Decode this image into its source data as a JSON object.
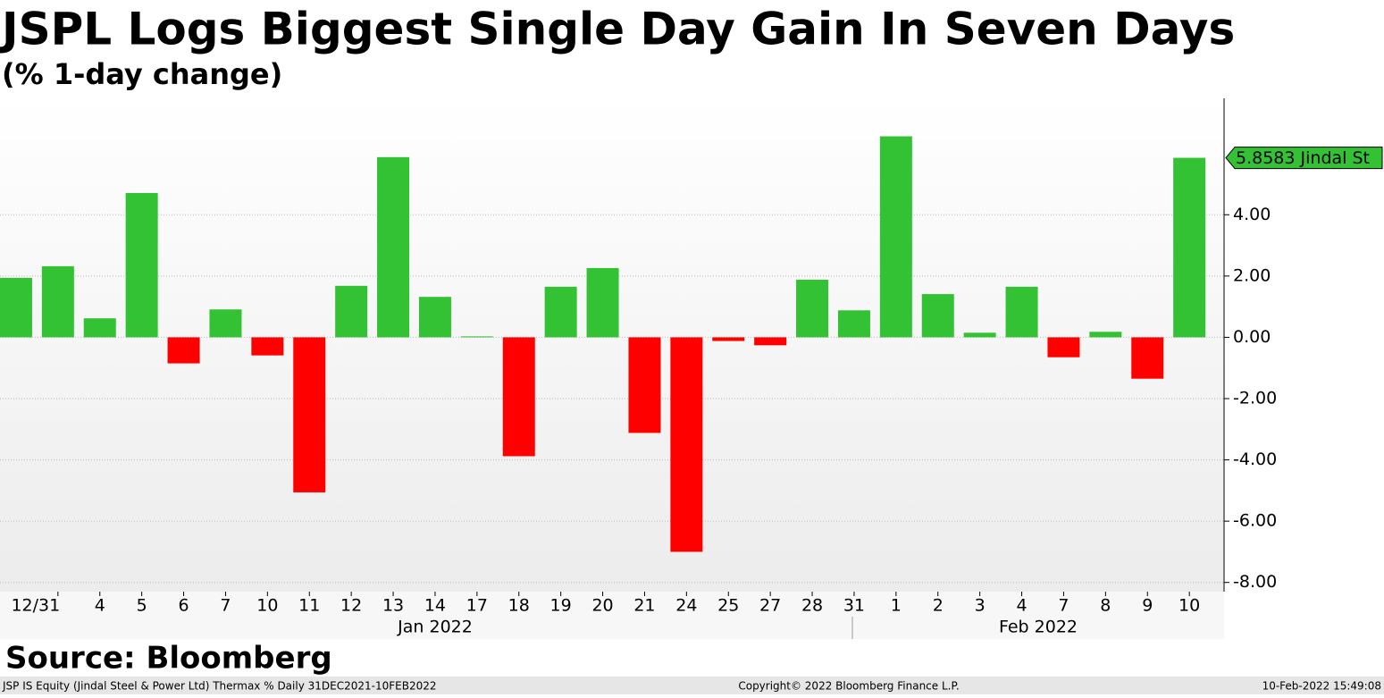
{
  "chart_data": {
    "type": "bar",
    "title": "JSPL Logs Biggest Single Day Gain In Seven Days",
    "subtitle": "(% 1-day change)",
    "categories": [
      null,
      "12/31",
      "4",
      "5",
      "6",
      "7",
      "10",
      "11",
      "12",
      "13",
      "14",
      "17",
      "18",
      "19",
      "20",
      "21",
      "24",
      "25",
      "27",
      "28",
      "31",
      "1",
      "2",
      "3",
      "4",
      "7",
      "8",
      "9",
      "10"
    ],
    "values": [
      1.94,
      2.32,
      0.62,
      4.71,
      -0.85,
      0.91,
      -0.59,
      -5.06,
      1.68,
      5.88,
      1.32,
      0.03,
      -3.88,
      1.65,
      2.26,
      -3.12,
      -7.0,
      -0.12,
      -0.26,
      1.88,
      0.88,
      6.56,
      1.41,
      0.15,
      1.65,
      -0.65,
      0.18,
      -1.35,
      5.8583
    ],
    "positive_color": "#33c233",
    "negative_color": "#ff0000",
    "ylim": [
      -8.3,
      7.8
    ],
    "yticks": [
      {
        "value": -8,
        "label": "-8.00"
      },
      {
        "value": -6,
        "label": "-6.00"
      },
      {
        "value": -4,
        "label": "-4.00"
      },
      {
        "value": -2,
        "label": "-2.00"
      },
      {
        "value": 0,
        "label": "0.00"
      },
      {
        "value": 2,
        "label": "2.00"
      },
      {
        "value": 4,
        "label": "4.00"
      }
    ],
    "grid": true,
    "annotation": "5.8583 Jindal St",
    "months": [
      "Jan 2022",
      "Feb 2022"
    ],
    "source": "Source: Bloomberg",
    "footer": [
      "JSP IS Equity (Jindal Steel & Power Ltd) Thermax %  Daily 31DEC2021-10FEB2022",
      "Copyright© 2022 Bloomberg Finance L.P.",
      "10-Feb-2022 15:49:08"
    ]
  }
}
